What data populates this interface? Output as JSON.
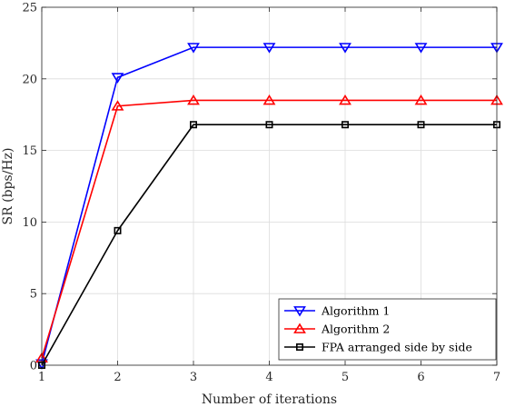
{
  "chart_data": {
    "type": "line",
    "title": "",
    "xlabel": "Number of iterations",
    "ylabel": "SR (bps/Hz)",
    "x": [
      1,
      2,
      3,
      4,
      5,
      6,
      7
    ],
    "xlim": [
      1,
      7
    ],
    "ylim": [
      0,
      25
    ],
    "xticks": [
      "1",
      "2",
      "3",
      "4",
      "5",
      "6",
      "7"
    ],
    "yticks": [
      "0",
      "5",
      "10",
      "15",
      "20",
      "25"
    ],
    "grid": true,
    "legend_position": "bottom-right",
    "series": [
      {
        "name": "Algorithm 1",
        "color": "#0000ff",
        "marker": "triangle-down",
        "values": [
          0.1,
          20.1,
          22.2,
          22.2,
          22.2,
          22.2,
          22.2
        ]
      },
      {
        "name": "Algorithm 2",
        "color": "#ff0000",
        "marker": "triangle-up",
        "values": [
          0.5,
          18.1,
          18.5,
          18.5,
          18.5,
          18.5,
          18.5
        ]
      },
      {
        "name": "FPA arranged side by side",
        "color": "#000000",
        "marker": "square",
        "values": [
          0.0,
          9.4,
          16.8,
          16.8,
          16.8,
          16.8,
          16.8
        ]
      }
    ]
  }
}
